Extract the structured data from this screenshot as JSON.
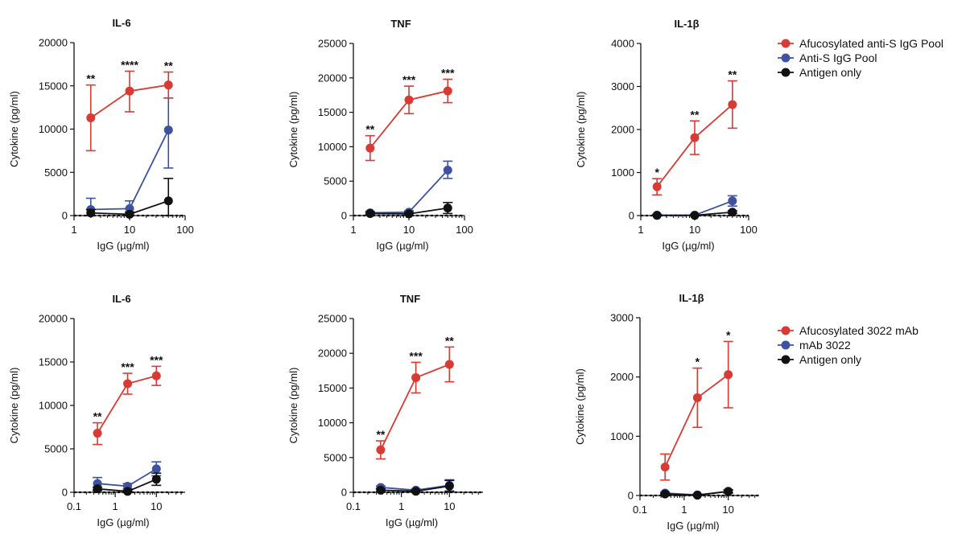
{
  "colors": {
    "afucosylated": "#d83a34",
    "standard": "#3d52a1",
    "antigen": "#111111",
    "axis": "#111111"
  },
  "legends": [
    {
      "entries": [
        {
          "label": "Afucosylated anti-S IgG Pool",
          "color": "#d83a34"
        },
        {
          "label": "Anti-S IgG Pool",
          "color": "#3d52a1"
        },
        {
          "label": "Antigen only",
          "color": "#111111"
        }
      ]
    },
    {
      "entries": [
        {
          "label": "Afucosylated 3022 mAb",
          "color": "#d83a34"
        },
        {
          "label": "mAb 3022",
          "color": "#3d52a1"
        },
        {
          "label": "Antigen only",
          "color": "#111111"
        }
      ]
    }
  ],
  "chart_data": [
    {
      "type": "line",
      "title": "IL-6",
      "xlabel": "IgG (µg/ml)",
      "ylabel": "Cytokine (pg/ml)",
      "x_scale": "log",
      "xlim": [
        1,
        100
      ],
      "x_ticks": [
        1,
        10,
        100
      ],
      "x_tick_labels": [
        "1",
        "10",
        "100"
      ],
      "ylim": [
        0,
        20000
      ],
      "y_ticks": [
        0,
        5000,
        10000,
        15000,
        20000
      ],
      "y_tick_labels": [
        "0",
        "5000",
        "10000",
        "15000",
        "20000"
      ],
      "baseline": "dotted line at y=0",
      "x": [
        2,
        10,
        50
      ],
      "series": [
        {
          "name": "Afucosylated anti-S IgG Pool",
          "color": "#d83a34",
          "values": [
            11300,
            14400,
            15100
          ],
          "error_upper": [
            15100,
            16700,
            16600
          ],
          "error_lower": [
            7500,
            12000,
            13600
          ]
        },
        {
          "name": "Anti-S IgG Pool",
          "color": "#3d52a1",
          "values": [
            700,
            800,
            9900
          ],
          "error_upper": [
            2000,
            1700,
            13600
          ],
          "error_lower": [
            0,
            0,
            5500
          ]
        },
        {
          "name": "Antigen only",
          "color": "#111111",
          "values": [
            300,
            150,
            1700
          ],
          "error_upper": [
            700,
            400,
            4300
          ],
          "error_lower": [
            0,
            0,
            0
          ]
        }
      ],
      "annotations": [
        {
          "x": 2,
          "text": "**"
        },
        {
          "x": 10,
          "text": "****"
        },
        {
          "x": 50,
          "text": "**"
        }
      ]
    },
    {
      "type": "line",
      "title": "TNF",
      "xlabel": "IgG (µg/ml)",
      "ylabel": "Cytokine (pg/ml)",
      "x_scale": "log",
      "xlim": [
        1,
        100
      ],
      "x_ticks": [
        1,
        10,
        100
      ],
      "x_tick_labels": [
        "1",
        "10",
        "100"
      ],
      "ylim": [
        0,
        25000
      ],
      "y_ticks": [
        0,
        5000,
        10000,
        15000,
        20000,
        25000
      ],
      "y_tick_labels": [
        "0",
        "5000",
        "10000",
        "15000",
        "20000",
        "25000"
      ],
      "baseline": "dotted line at y=0",
      "x": [
        2,
        10,
        50
      ],
      "series": [
        {
          "name": "Afucosylated anti-S IgG Pool",
          "color": "#d83a34",
          "values": [
            9800,
            16800,
            18100
          ],
          "error_upper": [
            11600,
            18800,
            19800
          ],
          "error_lower": [
            8000,
            14800,
            16400
          ]
        },
        {
          "name": "Anti-S IgG Pool",
          "color": "#3d52a1",
          "values": [
            400,
            500,
            6600
          ],
          "error_upper": [
            600,
            700,
            7900
          ],
          "error_lower": [
            200,
            300,
            5400
          ]
        },
        {
          "name": "Antigen only",
          "color": "#111111",
          "values": [
            300,
            250,
            1100
          ],
          "error_upper": [
            500,
            450,
            1900
          ],
          "error_lower": [
            100,
            50,
            300
          ]
        }
      ],
      "annotations": [
        {
          "x": 2,
          "text": "**"
        },
        {
          "x": 10,
          "text": "***"
        },
        {
          "x": 50,
          "text": "***"
        }
      ]
    },
    {
      "type": "line",
      "title": "IL-1β",
      "xlabel": "IgG (µg/ml)",
      "ylabel": "Cytokine (pg/ml)",
      "x_scale": "log",
      "xlim": [
        1,
        100
      ],
      "x_ticks": [
        1,
        10,
        100
      ],
      "x_tick_labels": [
        "1",
        "10",
        "100"
      ],
      "ylim": [
        0,
        4000
      ],
      "y_ticks": [
        0,
        1000,
        2000,
        3000,
        4000
      ],
      "y_tick_labels": [
        "0",
        "1000",
        "2000",
        "3000",
        "4000"
      ],
      "baseline": "dotted line at y=0",
      "x": [
        2,
        10,
        50
      ],
      "series": [
        {
          "name": "Afucosylated anti-S IgG Pool",
          "color": "#d83a34",
          "values": [
            670,
            1810,
            2580
          ],
          "error_upper": [
            860,
            2200,
            3130
          ],
          "error_lower": [
            480,
            1420,
            2030
          ]
        },
        {
          "name": "Anti-S IgG Pool",
          "color": "#3d52a1",
          "values": [
            10,
            10,
            340
          ],
          "error_upper": [
            30,
            30,
            460
          ],
          "error_lower": [
            0,
            0,
            220
          ]
        },
        {
          "name": "Antigen only",
          "color": "#111111",
          "values": [
            5,
            5,
            80
          ],
          "error_upper": [
            15,
            15,
            110
          ],
          "error_lower": [
            0,
            0,
            50
          ]
        }
      ],
      "annotations": [
        {
          "x": 2,
          "text": "*"
        },
        {
          "x": 10,
          "text": "**"
        },
        {
          "x": 50,
          "text": "**"
        }
      ]
    },
    {
      "type": "line",
      "title": "IL-6",
      "xlabel": "IgG (µg/ml)",
      "ylabel": "Cytokine (pg/ml)",
      "x_scale": "log",
      "xlim": [
        0.1,
        50
      ],
      "x_ticks": [
        0.1,
        1,
        10
      ],
      "x_tick_labels": [
        "0.1",
        "1",
        "10"
      ],
      "ylim": [
        0,
        20000
      ],
      "y_ticks": [
        0,
        5000,
        10000,
        15000,
        20000
      ],
      "y_tick_labels": [
        "0",
        "5000",
        "10000",
        "15000",
        "20000"
      ],
      "baseline": "dotted line at y=0",
      "x": [
        0.37,
        2,
        10
      ],
      "series": [
        {
          "name": "Afucosylated 3022 mAb",
          "color": "#d83a34",
          "values": [
            6800,
            12500,
            13400
          ],
          "error_upper": [
            8000,
            13700,
            14500
          ],
          "error_lower": [
            5500,
            11300,
            12300
          ]
        },
        {
          "name": "mAb 3022",
          "color": "#3d52a1",
          "values": [
            1000,
            700,
            2700
          ],
          "error_upper": [
            1700,
            1000,
            3500
          ],
          "error_lower": [
            300,
            400,
            1900
          ]
        },
        {
          "name": "Antigen only",
          "color": "#111111",
          "values": [
            400,
            100,
            1500
          ],
          "error_upper": [
            600,
            200,
            2200
          ],
          "error_lower": [
            200,
            0,
            800
          ]
        }
      ],
      "annotations": [
        {
          "x": 0.37,
          "text": "**"
        },
        {
          "x": 2,
          "text": "***"
        },
        {
          "x": 10,
          "text": "***"
        }
      ]
    },
    {
      "type": "line",
      "title": "TNF",
      "xlabel": "IgG (µg/ml)",
      "ylabel": "Cytokine (pg/ml)",
      "x_scale": "log",
      "xlim": [
        0.1,
        50
      ],
      "x_ticks": [
        0.1,
        1,
        10
      ],
      "x_tick_labels": [
        "0.1",
        "1",
        "10"
      ],
      "ylim": [
        0,
        25000
      ],
      "y_ticks": [
        0,
        5000,
        10000,
        15000,
        20000,
        25000
      ],
      "y_tick_labels": [
        "0",
        "5000",
        "10000",
        "15000",
        "20000",
        "25000"
      ],
      "baseline": "dotted line at y=0",
      "x": [
        0.37,
        2,
        10
      ],
      "series": [
        {
          "name": "Afucosylated 3022 mAb",
          "color": "#d83a34",
          "values": [
            6100,
            16500,
            18400
          ],
          "error_upper": [
            7400,
            18700,
            20900
          ],
          "error_lower": [
            4800,
            14300,
            15900
          ]
        },
        {
          "name": "mAb 3022",
          "color": "#3d52a1",
          "values": [
            700,
            300,
            1000
          ],
          "error_upper": [
            900,
            500,
            1800
          ],
          "error_lower": [
            500,
            100,
            200
          ]
        },
        {
          "name": "Antigen only",
          "color": "#111111",
          "values": [
            300,
            150,
            900
          ],
          "error_upper": [
            500,
            300,
            1700
          ],
          "error_lower": [
            100,
            0,
            100
          ]
        }
      ],
      "annotations": [
        {
          "x": 0.37,
          "text": "**"
        },
        {
          "x": 2,
          "text": "***"
        },
        {
          "x": 10,
          "text": "**"
        }
      ]
    },
    {
      "type": "line",
      "title": "IL-1β",
      "xlabel": "IgG (µg/ml)",
      "ylabel": "Cytokine (pg/ml)",
      "x_scale": "log",
      "xlim": [
        0.1,
        50
      ],
      "x_ticks": [
        0.1,
        1,
        10
      ],
      "x_tick_labels": [
        "0.1",
        "1",
        "10"
      ],
      "ylim": [
        0,
        3000
      ],
      "y_ticks": [
        0,
        1000,
        2000,
        3000
      ],
      "y_tick_labels": [
        "0",
        "1000",
        "2000",
        "3000"
      ],
      "baseline": "dotted line at y=0",
      "x": [
        0.37,
        2,
        10
      ],
      "series": [
        {
          "name": "Afucosylated 3022 mAb",
          "color": "#d83a34",
          "values": [
            480,
            1650,
            2040
          ],
          "error_upper": [
            700,
            2150,
            2600
          ],
          "error_lower": [
            260,
            1150,
            1480
          ]
        },
        {
          "name": "mAb 3022",
          "color": "#3d52a1",
          "values": [
            40,
            10,
            70
          ],
          "error_upper": [
            60,
            25,
            100
          ],
          "error_lower": [
            20,
            0,
            40
          ]
        },
        {
          "name": "Antigen only",
          "color": "#111111",
          "values": [
            25,
            5,
            70
          ],
          "error_upper": [
            40,
            15,
            95
          ],
          "error_lower": [
            10,
            0,
            45
          ]
        }
      ],
      "annotations": [
        {
          "x": 2,
          "text": "*"
        },
        {
          "x": 10,
          "text": "*"
        }
      ]
    }
  ]
}
